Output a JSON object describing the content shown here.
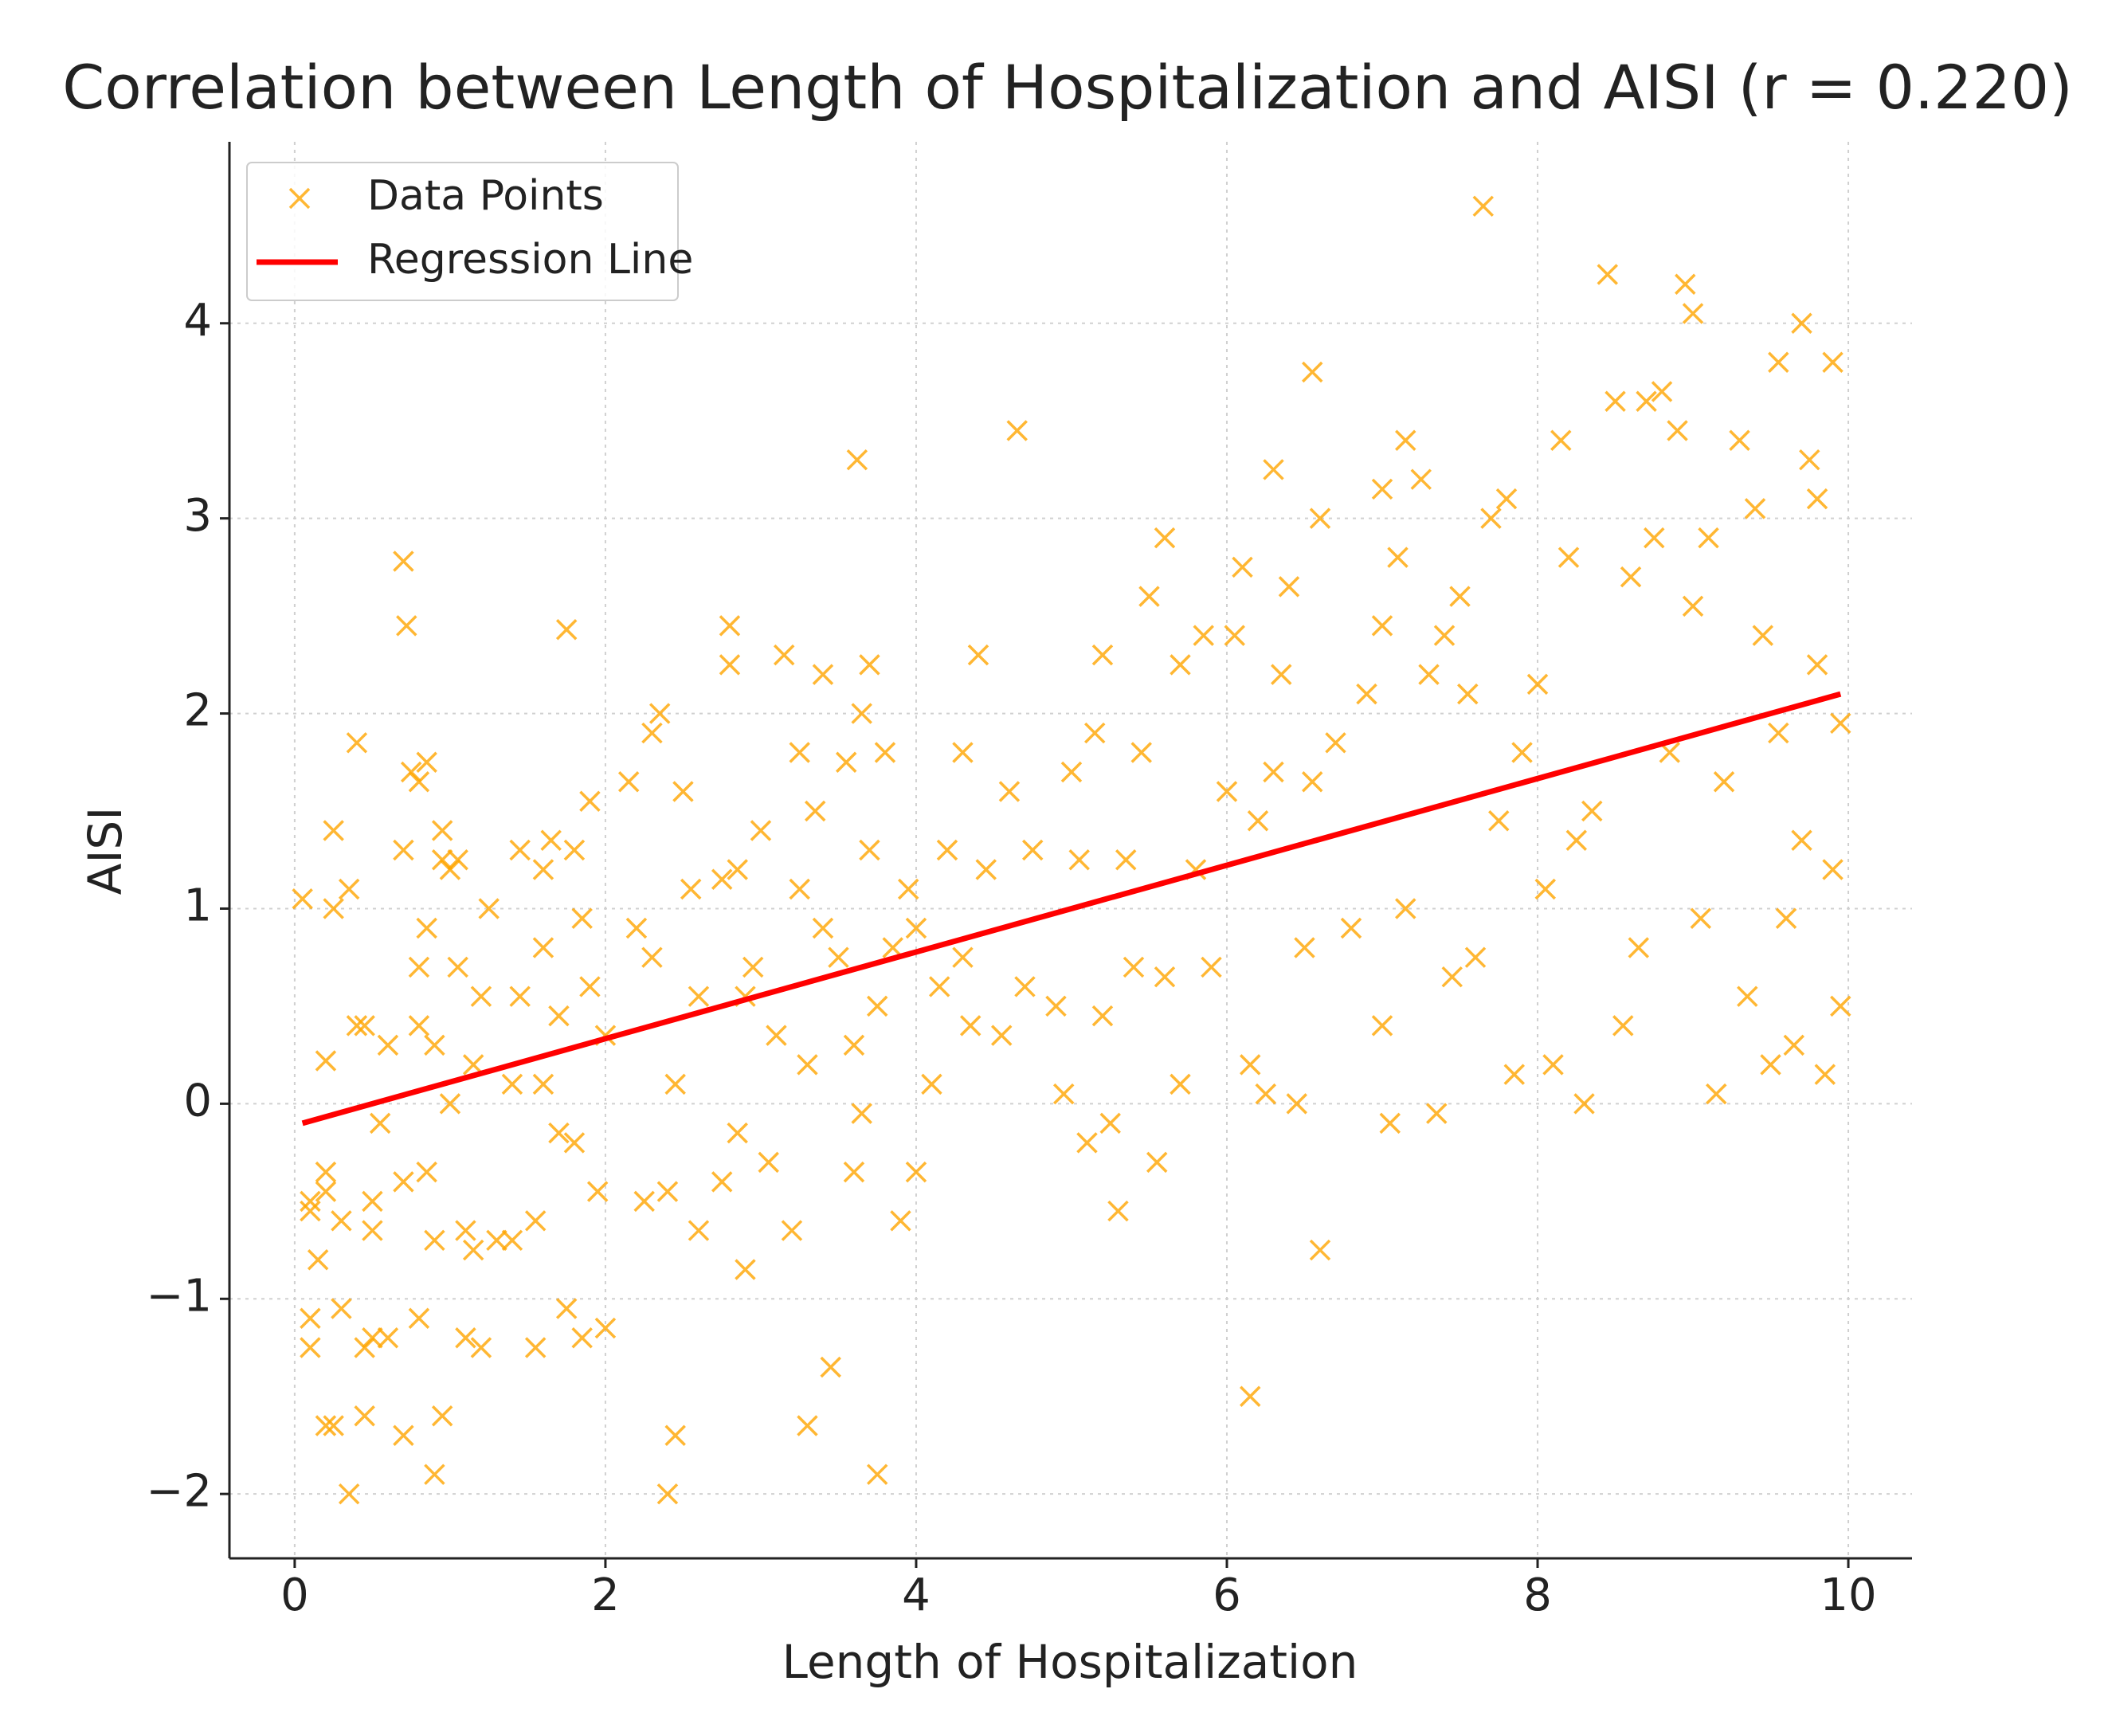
{
  "chart_data": {
    "type": "scatter",
    "title": "Correlation between Length of Hospitalization and AISI (r = 0.220)",
    "x_label": "Length of Hospitalization",
    "y_label": "AISI",
    "xlim": [
      -0.42,
      10.41
    ],
    "ylim": [
      -2.33,
      4.93
    ],
    "xticks": [
      0,
      2,
      4,
      6,
      8,
      10
    ],
    "yticks": [
      {
        "value": -2,
        "label": "−2"
      },
      {
        "value": -1,
        "label": "−1"
      },
      0,
      1,
      2,
      3,
      4
    ],
    "grid": true,
    "legend": "upper left",
    "series": [
      {
        "name": "Data Points",
        "color": "#ffa500",
        "type": "scatter",
        "x": [
          0.05,
          0.1,
          0.1,
          0.15,
          0.1,
          0.1,
          0.2,
          0.2,
          0.2,
          0.2,
          0.25,
          0.25,
          0.25,
          0.3,
          0.3,
          0.35,
          0.35,
          0.4,
          0.4,
          0.45,
          0.45,
          0.45,
          0.5,
          0.5,
          0.5,
          0.55,
          0.6,
          0.6,
          0.7,
          0.7,
          0.7,
          0.7,
          0.72,
          0.75,
          0.8,
          0.8,
          0.8,
          0.8,
          0.85,
          0.85,
          0.85,
          0.9,
          0.9,
          0.9,
          0.95,
          0.95,
          0.95,
          1.0,
          1.0,
          1.05,
          1.05,
          1.1,
          1.1,
          1.15,
          1.15,
          1.2,
          1.2,
          1.25,
          1.3,
          1.4,
          1.4,
          1.45,
          1.45,
          1.55,
          1.55,
          1.6,
          1.6,
          1.6,
          1.65,
          1.7,
          1.7,
          1.75,
          1.75,
          1.8,
          1.8,
          1.85,
          1.85,
          1.9,
          1.9,
          1.95,
          2.0,
          2.0,
          2.15,
          2.2,
          2.25,
          2.3,
          2.3,
          2.35,
          2.4,
          2.4,
          2.45,
          2.45,
          2.5,
          2.55,
          2.6,
          2.6,
          2.75,
          2.75,
          2.8,
          2.8,
          2.85,
          2.85,
          2.9,
          2.9,
          2.95,
          3.0,
          3.05,
          3.1,
          3.15,
          3.2,
          3.25,
          3.25,
          3.3,
          3.3,
          3.35,
          3.4,
          3.4,
          3.45,
          3.5,
          3.55,
          3.6,
          3.6,
          3.62,
          3.65,
          3.65,
          3.7,
          3.7,
          3.75,
          3.75,
          3.8,
          3.85,
          3.9,
          3.95,
          4.0,
          4.0,
          4.1,
          4.15,
          4.2,
          4.3,
          4.3,
          4.35,
          4.4,
          4.45,
          4.55,
          4.6,
          4.65,
          4.7,
          4.75,
          4.9,
          4.95,
          5.0,
          5.05,
          5.1,
          5.15,
          5.2,
          5.2,
          5.25,
          5.3,
          5.35,
          5.4,
          5.45,
          5.5,
          5.55,
          5.6,
          5.6,
          5.7,
          5.7,
          5.8,
          5.85,
          5.9,
          6.0,
          6.05,
          6.1,
          6.15,
          6.15,
          6.2,
          6.25,
          6.3,
          6.3,
          6.35,
          6.4,
          6.45,
          6.5,
          6.55,
          6.55,
          6.6,
          6.6,
          6.7,
          6.8,
          6.9,
          7.0,
          7.0,
          7.0,
          7.05,
          7.1,
          7.15,
          7.15,
          7.25,
          7.3,
          7.35,
          7.4,
          7.45,
          7.5,
          7.55,
          7.6,
          7.65,
          7.7,
          7.75,
          7.8,
          7.85,
          7.9,
          8.0,
          8.05,
          8.1,
          8.15,
          8.2,
          8.25,
          8.3,
          8.35,
          8.45,
          8.5,
          8.55,
          8.6,
          8.65,
          8.7,
          8.75,
          8.8,
          8.85,
          8.9,
          8.95,
          9.0,
          9.0,
          9.05,
          9.1,
          9.15,
          9.2,
          9.3,
          9.35,
          9.4,
          9.45,
          9.5,
          9.55,
          9.55,
          9.6,
          9.65,
          9.7,
          9.7,
          9.75,
          9.8,
          9.8,
          9.85,
          9.9,
          9.9,
          9.95,
          9.95
        ],
        "values": [
          1.05,
          -0.55,
          -0.5,
          -0.8,
          -1.1,
          -1.25,
          -0.35,
          -0.45,
          0.22,
          -1.65,
          -1.65,
          1.4,
          1.0,
          -0.6,
          -1.05,
          -2.0,
          1.1,
          1.85,
          0.4,
          -1.6,
          -1.25,
          0.4,
          -1.2,
          -0.5,
          -0.65,
          -0.1,
          -1.2,
          0.3,
          1.3,
          -0.4,
          -1.7,
          2.78,
          2.45,
          1.7,
          1.65,
          0.7,
          0.4,
          -1.1,
          1.75,
          0.9,
          -0.35,
          -0.7,
          0.3,
          -1.9,
          1.4,
          1.25,
          -1.6,
          1.2,
          0.0,
          0.7,
          1.25,
          -0.65,
          -1.2,
          0.2,
          -0.75,
          0.55,
          -1.25,
          1.0,
          -0.7,
          0.1,
          -0.7,
          1.3,
          0.55,
          -0.6,
          -1.25,
          0.8,
          1.2,
          0.1,
          1.35,
          0.45,
          -0.15,
          2.43,
          -1.05,
          1.3,
          -0.2,
          0.95,
          -1.2,
          1.55,
          0.6,
          -0.45,
          -1.15,
          0.35,
          1.65,
          0.9,
          -0.5,
          1.9,
          0.75,
          2.0,
          -0.45,
          -2.0,
          -1.7,
          0.1,
          1.6,
          1.1,
          0.55,
          -0.65,
          1.15,
          -0.4,
          2.45,
          2.25,
          -0.15,
          1.2,
          0.55,
          -0.85,
          0.7,
          1.4,
          -0.3,
          0.35,
          2.3,
          -0.65,
          1.1,
          1.8,
          0.2,
          -1.65,
          1.5,
          2.2,
          0.9,
          -1.35,
          0.75,
          1.75,
          0.3,
          -0.35,
          3.3,
          2.0,
          -0.05,
          2.25,
          1.3,
          0.5,
          -1.9,
          1.8,
          0.8,
          -0.6,
          1.1,
          0.9,
          -0.35,
          0.1,
          0.6,
          1.3,
          1.8,
          0.75,
          0.4,
          2.3,
          1.2,
          0.35,
          1.6,
          3.45,
          0.6,
          1.3,
          0.5,
          0.05,
          1.7,
          1.25,
          -0.2,
          1.9,
          2.3,
          0.45,
          -0.1,
          -0.55,
          1.25,
          0.7,
          1.8,
          2.6,
          -0.3,
          2.9,
          0.65,
          2.25,
          0.1,
          1.2,
          2.4,
          0.7,
          1.6,
          2.4,
          2.75,
          0.2,
          -1.5,
          1.45,
          0.05,
          3.25,
          1.7,
          2.2,
          2.65,
          0.0,
          0.8,
          3.75,
          1.65,
          3.0,
          -0.75,
          1.85,
          0.9,
          2.1,
          3.15,
          2.45,
          0.4,
          -0.1,
          2.8,
          3.4,
          1.0,
          3.2,
          2.2,
          -0.05,
          2.4,
          0.65,
          2.6,
          2.1,
          0.75,
          4.6,
          3.0,
          1.45,
          3.1,
          0.15,
          1.8,
          2.15,
          1.1,
          0.2,
          3.4,
          2.8,
          1.35,
          0.0,
          1.5,
          4.25,
          3.6,
          0.4,
          2.7,
          0.8,
          3.6,
          2.9,
          3.65,
          1.8,
          3.45,
          4.2,
          4.05,
          2.55,
          0.95,
          2.9,
          0.05,
          1.65,
          3.4,
          0.55,
          3.05,
          2.4,
          0.2,
          3.8,
          1.9,
          0.95,
          0.3,
          4.0,
          1.35,
          3.3,
          3.1,
          2.25,
          0.15,
          3.8,
          1.2,
          0.5,
          1.95
        ]
      },
      {
        "name": "Regression Line",
        "color": "#ff0000",
        "type": "line",
        "x": [
          0.05,
          9.95
        ],
        "values": [
          -0.1,
          2.1
        ]
      }
    ]
  }
}
